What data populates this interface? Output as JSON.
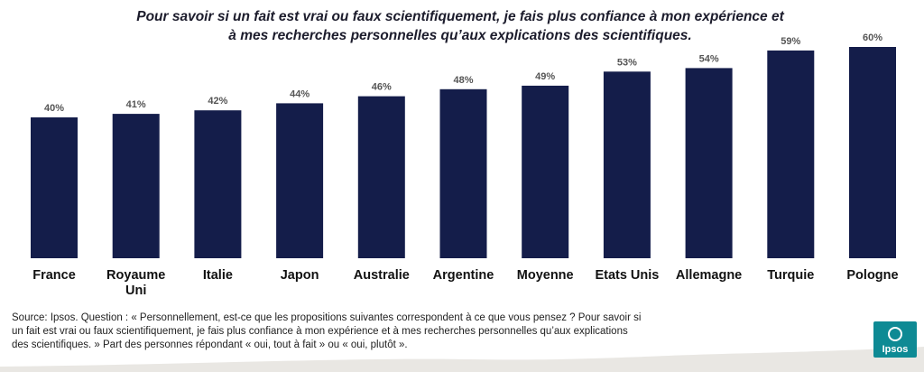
{
  "title": "Pour savoir si un fait est vrai ou faux scientifiquement, je fais plus confiance à mon expérience et à mes recherches personnelles qu’aux explications des scientifiques.",
  "source": "Source: Ipsos. Question : « Personnellement, est-ce que les propositions suivantes correspondent à ce que vous pensez ? Pour savoir si un fait est vrai ou faux scientifiquement, je fais plus confiance à mon expérience et à mes recherches personnelles qu’aux explications des scientifiques. » Part des personnes répondant « oui, tout à fait » ou « oui, plutôt ».",
  "logo": {
    "text": "Ipsos",
    "color": "#0e8a94"
  },
  "colors": {
    "bar": "#141d4a"
  },
  "chart_data": {
    "type": "bar",
    "title": "Pour savoir si un fait est vrai ou faux scientifiquement, je fais plus confiance à mon expérience et à mes recherches personnelles qu’aux explications des scientifiques.",
    "categories": [
      "France",
      "Royaume Uni",
      "Italie",
      "Japon",
      "Australie",
      "Argentine",
      "Moyenne",
      "Etats Unis",
      "Allemagne",
      "Turquie",
      "Pologne"
    ],
    "values": [
      40,
      41,
      42,
      44,
      46,
      48,
      49,
      53,
      54,
      59,
      60
    ],
    "value_labels": [
      "40%",
      "41%",
      "42%",
      "44%",
      "46%",
      "48%",
      "49%",
      "53%",
      "54%",
      "59%",
      "60%"
    ],
    "xlabel": "",
    "ylabel": "",
    "ylim": [
      0,
      60
    ],
    "grid": false,
    "legend": "none"
  }
}
